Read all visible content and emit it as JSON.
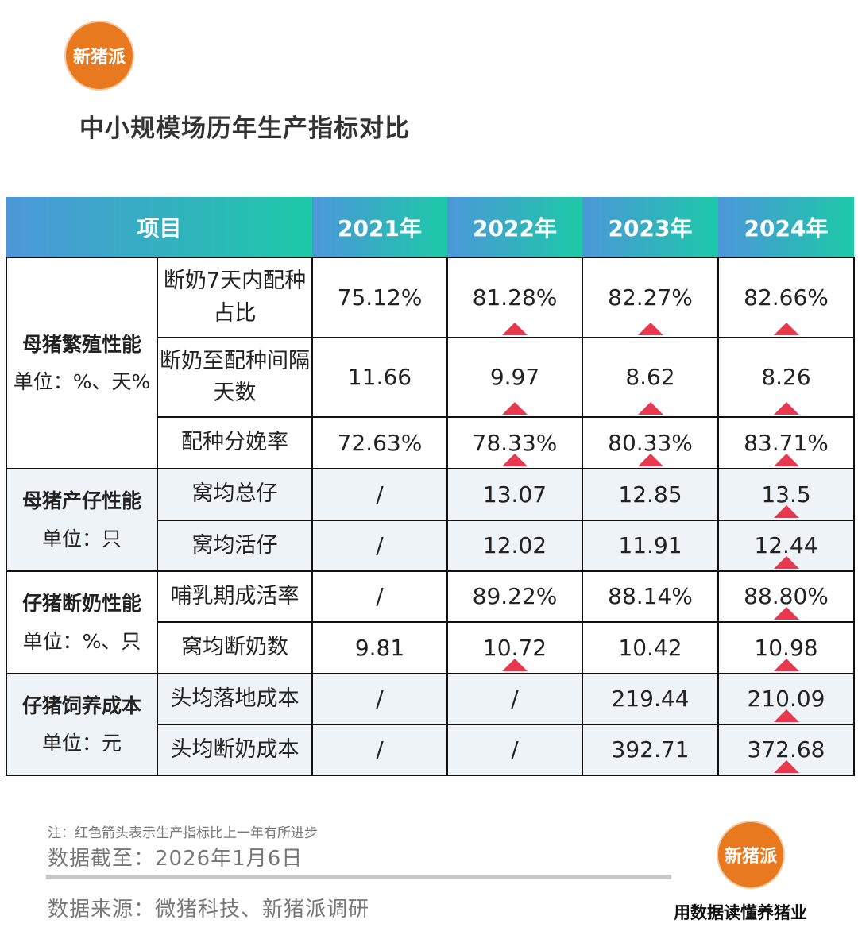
{
  "logo_text": "新猪派",
  "title": "中小规模场历年生产指标对比",
  "header": [
    "项目",
    "2021年",
    "2022年",
    "2023年",
    "2024年"
  ],
  "colors": {
    "up_arrow": "#e8384f",
    "header_from": "#4c97d9",
    "header_to": "#1cc9a7",
    "logo": "#e8791f"
  },
  "sections": [
    {
      "name": "母猪繁殖性能",
      "unit": "单位：%、天%",
      "shade": false,
      "rows": [
        {
          "item": "断奶7天内配种占比",
          "values": [
            "75.12%",
            "81.28%",
            "82.27%",
            "82.66%"
          ],
          "up": [
            false,
            true,
            true,
            true
          ]
        },
        {
          "item": "断奶至配种间隔天数",
          "values": [
            "11.66",
            "9.97",
            "8.62",
            "8.26"
          ],
          "up": [
            false,
            true,
            true,
            true
          ]
        },
        {
          "item": "配种分娩率",
          "values": [
            "72.63%",
            "78.33%",
            "80.33%",
            "83.71%"
          ],
          "up": [
            false,
            true,
            true,
            true
          ]
        }
      ]
    },
    {
      "name": "母猪产仔性能",
      "unit": "单位：只",
      "shade": true,
      "rows": [
        {
          "item": "窝均总仔",
          "values": [
            "/",
            "13.07",
            "12.85",
            "13.5"
          ],
          "up": [
            false,
            false,
            false,
            true
          ]
        },
        {
          "item": "窝均活仔",
          "values": [
            "/",
            "12.02",
            "11.91",
            "12.44"
          ],
          "up": [
            false,
            false,
            false,
            true
          ]
        }
      ]
    },
    {
      "name": "仔猪断奶性能",
      "unit": "单位：%、只",
      "shade": false,
      "rows": [
        {
          "item": "哺乳期成活率",
          "values": [
            "/",
            "89.22%",
            "88.14%",
            "88.80%"
          ],
          "up": [
            false,
            false,
            false,
            true
          ]
        },
        {
          "item": "窝均断奶数",
          "values": [
            "9.81",
            "10.72",
            "10.42",
            "10.98"
          ],
          "up": [
            false,
            true,
            false,
            true
          ]
        }
      ]
    },
    {
      "name": "仔猪饲养成本",
      "unit": "单位：元",
      "shade": true,
      "rows": [
        {
          "item": "头均落地成本",
          "values": [
            "/",
            "/",
            "219.44",
            "210.09"
          ],
          "up": [
            false,
            false,
            false,
            true
          ]
        },
        {
          "item": "头均断奶成本",
          "values": [
            "/",
            "/",
            "392.71",
            "372.68"
          ],
          "up": [
            false,
            false,
            false,
            true
          ]
        }
      ]
    }
  ],
  "footer": {
    "note": "注：红色箭头表示生产指标比上一年有所进步",
    "date": "数据截至：2026年1月6日",
    "source": "数据来源：微猪科技、新猪派调研",
    "slogan": "用数据读懂养猪业"
  }
}
